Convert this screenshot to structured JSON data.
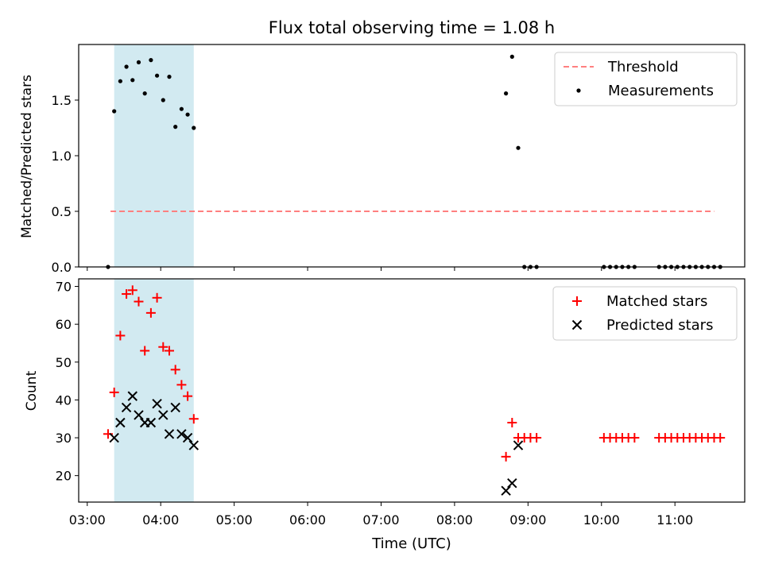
{
  "chart_data": {
    "title": "Flux total observing time = 1.08 h",
    "xlabel": "Time (UTC)",
    "x_ticks": [
      "03:00",
      "04:00",
      "05:00",
      "06:00",
      "07:00",
      "08:00",
      "09:00",
      "10:00",
      "11:00"
    ],
    "xlim": [
      "02:53",
      "11:57"
    ],
    "shaded_interval": [
      "03:22",
      "04:27"
    ],
    "shaded_color": "#add8e6",
    "panels": [
      {
        "type": "scatter",
        "ylabel": "Matched/Predicted stars",
        "ylim": [
          0,
          2.0
        ],
        "yticks": [
          0.0,
          0.5,
          1.0,
          1.5
        ],
        "legend_position": "upper right",
        "threshold": {
          "name": "Threshold",
          "value": 0.5,
          "x_start": "03:19",
          "x_end": "11:32",
          "color": "#ff8080",
          "style": "dashed"
        },
        "series": [
          {
            "name": "Measurements",
            "color": "#000000",
            "marker": "dot",
            "x": [
              "03:17",
              "03:22",
              "03:27",
              "03:32",
              "03:37",
              "03:42",
              "03:47",
              "03:52",
              "03:57",
              "04:02",
              "04:07",
              "04:12",
              "04:17",
              "04:22",
              "04:27",
              "08:42",
              "08:47",
              "08:52",
              "08:57",
              "09:02",
              "09:07",
              "10:02",
              "10:07",
              "10:12",
              "10:17",
              "10:22",
              "10:27",
              "10:47",
              "10:52",
              "10:57",
              "11:02",
              "11:07",
              "11:12",
              "11:17",
              "11:22",
              "11:27",
              "11:32",
              "11:37"
            ],
            "y": [
              0,
              1.4,
              1.67,
              1.8,
              1.68,
              1.84,
              1.56,
              1.86,
              1.72,
              1.5,
              1.71,
              1.26,
              1.42,
              1.37,
              1.25,
              1.56,
              1.89,
              1.07,
              0,
              0,
              0,
              0,
              0,
              0,
              0,
              0,
              0,
              0,
              0,
              0,
              0,
              0,
              0,
              0,
              0,
              0,
              0,
              0
            ]
          }
        ]
      },
      {
        "type": "scatter",
        "ylabel": "Count",
        "ylim": [
          13,
          72
        ],
        "yticks": [
          20,
          30,
          40,
          50,
          60,
          70
        ],
        "legend_position": "upper right",
        "series": [
          {
            "name": "Matched stars",
            "color": "#ff0000",
            "marker": "plus",
            "x": [
              "03:17",
              "03:22",
              "03:27",
              "03:32",
              "03:37",
              "03:42",
              "03:47",
              "03:52",
              "03:57",
              "04:02",
              "04:07",
              "04:12",
              "04:17",
              "04:22",
              "04:27",
              "08:42",
              "08:47",
              "08:52",
              "08:57",
              "09:02",
              "09:07",
              "10:02",
              "10:07",
              "10:12",
              "10:17",
              "10:22",
              "10:27",
              "10:47",
              "10:52",
              "10:57",
              "11:02",
              "11:07",
              "11:12",
              "11:17",
              "11:22",
              "11:27",
              "11:32",
              "11:37"
            ],
            "y": [
              31,
              42,
              57,
              68,
              69,
              66,
              53,
              63,
              67,
              54,
              53,
              48,
              44,
              41,
              35,
              25,
              34,
              30,
              30,
              30,
              30,
              30,
              30,
              30,
              30,
              30,
              30,
              30,
              30,
              30,
              30,
              30,
              30,
              30,
              30,
              30,
              30,
              30
            ]
          },
          {
            "name": "Predicted stars",
            "color": "#000000",
            "marker": "x",
            "x": [
              "03:22",
              "03:27",
              "03:32",
              "03:37",
              "03:42",
              "03:47",
              "03:52",
              "03:57",
              "04:02",
              "04:07",
              "04:12",
              "04:17",
              "04:22",
              "04:27",
              "08:42",
              "08:47",
              "08:52"
            ],
            "y": [
              30,
              34,
              38,
              41,
              36,
              34,
              34,
              39,
              36,
              31,
              38,
              31,
              30,
              28,
              16,
              18,
              28
            ]
          }
        ]
      }
    ]
  }
}
